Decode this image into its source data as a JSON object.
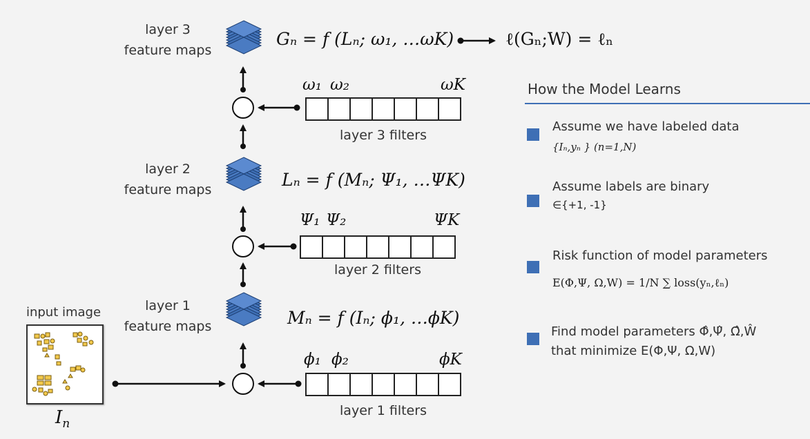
{
  "diagram": {
    "input_image_label": "input image",
    "input_symbol": "I",
    "input_subscript": "n",
    "layer1": {
      "feature_label_line1": "layer 1",
      "feature_label_line2": "feature maps",
      "filters_label": "layer 1 filters",
      "formula": "Mₙ = f (Iₙ; ϕ₁, …ϕK)",
      "filter_symbols": [
        "ϕ₁",
        "ϕ₂",
        "ϕK"
      ]
    },
    "layer2": {
      "feature_label_line1": "layer 2",
      "feature_label_line2": "feature maps",
      "filters_label": "layer 2 filters",
      "formula": "Lₙ = f (Mₙ; Ψ₁, …ΨK)",
      "filter_symbols": [
        "Ψ₁",
        "Ψ₂",
        "ΨK"
      ]
    },
    "layer3": {
      "feature_label_line1": "layer 3",
      "feature_label_line2": "feature maps",
      "filters_label": "layer 3 filters",
      "formula": "Gₙ = f (Lₙ; ω₁, …ωK)",
      "filter_symbols": [
        "ω₁",
        "ω₂",
        "ωK"
      ]
    },
    "loss_formula": "ℓ(Gₙ;W) = ℓₙ"
  },
  "panel": {
    "title": "How the Model Learns",
    "accent_color": "#3e6fb5",
    "items": [
      {
        "text": "Assume we have labeled data",
        "formula": "{Iₙ,yₙ } (n=1,N)"
      },
      {
        "text": "Assume labels are binary",
        "formula": "∈{+1, -1}"
      },
      {
        "text": "Risk function of model parameters",
        "formula": "E(Φ,Ψ, Ω,W) = 1/N ∑ loss(yₙ,ℓₙ)"
      },
      {
        "text": "Find model parameters Φ̂,Ψ̂, Ω̂,Ŵ",
        "formula": "that minimize E(Φ,Ψ, Ω,W)"
      }
    ]
  }
}
